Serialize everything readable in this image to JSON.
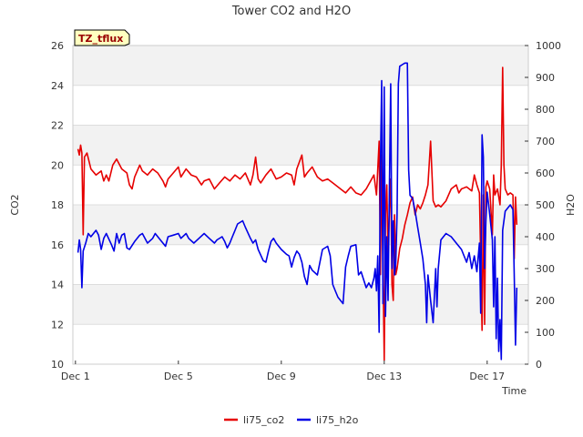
{
  "chart_data": {
    "type": "line",
    "title": "Tower CO2 and H2O",
    "xlabel": "Time",
    "ylabel_left": "CO2",
    "ylabel_right": "H2O",
    "badge": "TZ_tflux",
    "x_ticks": [
      {
        "day": 1,
        "label": "Dec 1"
      },
      {
        "day": 5,
        "label": "Dec 5"
      },
      {
        "day": 9,
        "label": "Dec 9"
      },
      {
        "day": 13,
        "label": "Dec 13"
      },
      {
        "day": 17,
        "label": "Dec 17"
      }
    ],
    "xlim": [
      0.9,
      18.6
    ],
    "ylim_left": [
      10,
      26
    ],
    "ylim_right": [
      0,
      1000
    ],
    "left_ticks": [
      10,
      12,
      14,
      16,
      18,
      20,
      22,
      24,
      26
    ],
    "right_ticks": [
      0,
      100,
      200,
      300,
      400,
      500,
      600,
      700,
      800,
      900,
      1000
    ],
    "bands": [
      [
        12,
        14
      ],
      [
        16,
        18
      ],
      [
        20,
        22
      ],
      [
        24,
        26
      ]
    ],
    "series": [
      {
        "name": "li75_co2",
        "color": "#e60000",
        "axis": "left",
        "points": [
          [
            1.1,
            20.8
          ],
          [
            1.15,
            20.5
          ],
          [
            1.2,
            21.0
          ],
          [
            1.25,
            20.6
          ],
          [
            1.3,
            16.5
          ],
          [
            1.35,
            20.4
          ],
          [
            1.45,
            20.6
          ],
          [
            1.6,
            19.8
          ],
          [
            1.8,
            19.5
          ],
          [
            2.0,
            19.7
          ],
          [
            2.1,
            19.2
          ],
          [
            2.2,
            19.5
          ],
          [
            2.3,
            19.2
          ],
          [
            2.45,
            20.0
          ],
          [
            2.6,
            20.3
          ],
          [
            2.8,
            19.8
          ],
          [
            3.0,
            19.6
          ],
          [
            3.1,
            19.0
          ],
          [
            3.2,
            18.8
          ],
          [
            3.3,
            19.4
          ],
          [
            3.5,
            20.0
          ],
          [
            3.6,
            19.7
          ],
          [
            3.8,
            19.5
          ],
          [
            4.0,
            19.8
          ],
          [
            4.2,
            19.6
          ],
          [
            4.4,
            19.2
          ],
          [
            4.5,
            18.9
          ],
          [
            4.6,
            19.3
          ],
          [
            4.8,
            19.6
          ],
          [
            5.0,
            19.9
          ],
          [
            5.1,
            19.4
          ],
          [
            5.3,
            19.8
          ],
          [
            5.5,
            19.5
          ],
          [
            5.7,
            19.4
          ],
          [
            5.9,
            19.0
          ],
          [
            6.0,
            19.2
          ],
          [
            6.2,
            19.3
          ],
          [
            6.4,
            18.8
          ],
          [
            6.6,
            19.1
          ],
          [
            6.8,
            19.4
          ],
          [
            7.0,
            19.2
          ],
          [
            7.2,
            19.5
          ],
          [
            7.4,
            19.3
          ],
          [
            7.6,
            19.6
          ],
          [
            7.8,
            19.0
          ],
          [
            7.9,
            19.5
          ],
          [
            8.0,
            20.4
          ],
          [
            8.1,
            19.3
          ],
          [
            8.2,
            19.1
          ],
          [
            8.4,
            19.5
          ],
          [
            8.6,
            19.8
          ],
          [
            8.8,
            19.3
          ],
          [
            9.0,
            19.4
          ],
          [
            9.2,
            19.6
          ],
          [
            9.4,
            19.5
          ],
          [
            9.5,
            19.0
          ],
          [
            9.6,
            19.8
          ],
          [
            9.8,
            20.5
          ],
          [
            9.9,
            19.4
          ],
          [
            10.0,
            19.6
          ],
          [
            10.2,
            19.9
          ],
          [
            10.4,
            19.4
          ],
          [
            10.6,
            19.2
          ],
          [
            10.8,
            19.3
          ],
          [
            11.0,
            19.1
          ],
          [
            11.3,
            18.8
          ],
          [
            11.5,
            18.6
          ],
          [
            11.7,
            18.9
          ],
          [
            11.9,
            18.6
          ],
          [
            12.1,
            18.5
          ],
          [
            12.3,
            18.8
          ],
          [
            12.6,
            19.5
          ],
          [
            12.7,
            18.5
          ],
          [
            12.8,
            21.2
          ],
          [
            12.85,
            14.5
          ],
          [
            12.9,
            20.5
          ],
          [
            12.95,
            15.0
          ],
          [
            13.0,
            10.2
          ],
          [
            13.05,
            17.5
          ],
          [
            13.1,
            19.0
          ],
          [
            13.15,
            15.5
          ],
          [
            13.2,
            17.8
          ],
          [
            13.25,
            19.3
          ],
          [
            13.3,
            14.0
          ],
          [
            13.35,
            13.2
          ],
          [
            13.4,
            17.5
          ],
          [
            13.45,
            14.5
          ],
          [
            13.5,
            14.8
          ],
          [
            13.6,
            15.8
          ],
          [
            13.7,
            16.3
          ],
          [
            13.8,
            17.0
          ],
          [
            13.9,
            17.5
          ],
          [
            14.0,
            18.1
          ],
          [
            14.1,
            18.4
          ],
          [
            14.2,
            17.5
          ],
          [
            14.3,
            18.0
          ],
          [
            14.4,
            17.8
          ],
          [
            14.5,
            18.1
          ],
          [
            14.6,
            18.5
          ],
          [
            14.7,
            19.0
          ],
          [
            14.8,
            21.2
          ],
          [
            14.9,
            18.2
          ],
          [
            15.0,
            17.9
          ],
          [
            15.1,
            18.0
          ],
          [
            15.2,
            17.9
          ],
          [
            15.4,
            18.2
          ],
          [
            15.6,
            18.8
          ],
          [
            15.8,
            19.0
          ],
          [
            15.9,
            18.6
          ],
          [
            16.0,
            18.8
          ],
          [
            16.2,
            18.9
          ],
          [
            16.4,
            18.7
          ],
          [
            16.5,
            19.5
          ],
          [
            16.6,
            19.0
          ],
          [
            16.7,
            18.6
          ],
          [
            16.8,
            11.7
          ],
          [
            16.85,
            18.5
          ],
          [
            16.9,
            12.0
          ],
          [
            16.95,
            18.9
          ],
          [
            17.0,
            19.2
          ],
          [
            17.1,
            18.8
          ],
          [
            17.2,
            16.5
          ],
          [
            17.25,
            19.5
          ],
          [
            17.3,
            18.5
          ],
          [
            17.4,
            18.8
          ],
          [
            17.5,
            18.0
          ],
          [
            17.55,
            20.0
          ],
          [
            17.6,
            24.9
          ],
          [
            17.65,
            20.0
          ],
          [
            17.7,
            18.8
          ],
          [
            17.8,
            18.5
          ],
          [
            17.9,
            18.6
          ],
          [
            18.0,
            18.5
          ],
          [
            18.05,
            15.3
          ],
          [
            18.1,
            18.4
          ],
          [
            18.15,
            17.0
          ]
        ]
      },
      {
        "name": "li75_h2o",
        "color": "#0000e6",
        "axis": "right",
        "points": [
          [
            1.1,
            350
          ],
          [
            1.15,
            390
          ],
          [
            1.2,
            360
          ],
          [
            1.25,
            240
          ],
          [
            1.3,
            355
          ],
          [
            1.4,
            380
          ],
          [
            1.5,
            410
          ],
          [
            1.6,
            400
          ],
          [
            1.8,
            420
          ],
          [
            1.9,
            405
          ],
          [
            2.0,
            360
          ],
          [
            2.1,
            395
          ],
          [
            2.2,
            410
          ],
          [
            2.4,
            375
          ],
          [
            2.5,
            355
          ],
          [
            2.6,
            410
          ],
          [
            2.7,
            380
          ],
          [
            2.8,
            405
          ],
          [
            2.9,
            410
          ],
          [
            3.0,
            365
          ],
          [
            3.1,
            360
          ],
          [
            3.3,
            385
          ],
          [
            3.5,
            405
          ],
          [
            3.6,
            410
          ],
          [
            3.8,
            380
          ],
          [
            4.0,
            395
          ],
          [
            4.1,
            410
          ],
          [
            4.3,
            390
          ],
          [
            4.5,
            370
          ],
          [
            4.6,
            400
          ],
          [
            4.8,
            405
          ],
          [
            5.0,
            410
          ],
          [
            5.1,
            395
          ],
          [
            5.3,
            410
          ],
          [
            5.4,
            395
          ],
          [
            5.6,
            380
          ],
          [
            5.8,
            395
          ],
          [
            6.0,
            410
          ],
          [
            6.2,
            395
          ],
          [
            6.4,
            380
          ],
          [
            6.5,
            390
          ],
          [
            6.7,
            400
          ],
          [
            6.8,
            385
          ],
          [
            6.9,
            365
          ],
          [
            7.0,
            380
          ],
          [
            7.1,
            400
          ],
          [
            7.2,
            420
          ],
          [
            7.3,
            440
          ],
          [
            7.5,
            450
          ],
          [
            7.6,
            430
          ],
          [
            7.8,
            395
          ],
          [
            7.9,
            380
          ],
          [
            8.0,
            390
          ],
          [
            8.1,
            360
          ],
          [
            8.3,
            325
          ],
          [
            8.4,
            320
          ],
          [
            8.5,
            355
          ],
          [
            8.6,
            385
          ],
          [
            8.7,
            395
          ],
          [
            8.8,
            380
          ],
          [
            9.0,
            360
          ],
          [
            9.2,
            345
          ],
          [
            9.3,
            340
          ],
          [
            9.4,
            305
          ],
          [
            9.5,
            335
          ],
          [
            9.6,
            355
          ],
          [
            9.7,
            345
          ],
          [
            9.8,
            320
          ],
          [
            9.9,
            275
          ],
          [
            10.0,
            250
          ],
          [
            10.1,
            310
          ],
          [
            10.2,
            295
          ],
          [
            10.4,
            280
          ],
          [
            10.6,
            360
          ],
          [
            10.8,
            370
          ],
          [
            10.9,
            340
          ],
          [
            11.0,
            250
          ],
          [
            11.1,
            230
          ],
          [
            11.2,
            210
          ],
          [
            11.4,
            190
          ],
          [
            11.5,
            305
          ],
          [
            11.6,
            340
          ],
          [
            11.7,
            370
          ],
          [
            11.9,
            375
          ],
          [
            12.0,
            280
          ],
          [
            12.1,
            290
          ],
          [
            12.2,
            265
          ],
          [
            12.3,
            240
          ],
          [
            12.4,
            255
          ],
          [
            12.5,
            240
          ],
          [
            12.6,
            270
          ],
          [
            12.65,
            300
          ],
          [
            12.7,
            230
          ],
          [
            12.75,
            340
          ],
          [
            12.8,
            100
          ],
          [
            12.85,
            620
          ],
          [
            12.9,
            890
          ],
          [
            12.95,
            190
          ],
          [
            13.0,
            870
          ],
          [
            13.05,
            150
          ],
          [
            13.1,
            400
          ],
          [
            13.15,
            200
          ],
          [
            13.2,
            560
          ],
          [
            13.25,
            880
          ],
          [
            13.3,
            300
          ],
          [
            13.35,
            450
          ],
          [
            13.4,
            280
          ],
          [
            13.45,
            320
          ],
          [
            13.5,
            470
          ],
          [
            13.55,
            880
          ],
          [
            13.6,
            935
          ],
          [
            13.7,
            940
          ],
          [
            13.8,
            945
          ],
          [
            13.9,
            945
          ],
          [
            13.95,
            610
          ],
          [
            14.0,
            530
          ],
          [
            14.1,
            520
          ],
          [
            14.2,
            480
          ],
          [
            14.3,
            430
          ],
          [
            14.4,
            380
          ],
          [
            14.5,
            330
          ],
          [
            14.6,
            250
          ],
          [
            14.65,
            130
          ],
          [
            14.7,
            280
          ],
          [
            14.8,
            200
          ],
          [
            14.9,
            130
          ],
          [
            15.0,
            300
          ],
          [
            15.05,
            180
          ],
          [
            15.1,
            300
          ],
          [
            15.2,
            390
          ],
          [
            15.4,
            410
          ],
          [
            15.6,
            400
          ],
          [
            15.8,
            380
          ],
          [
            16.0,
            360
          ],
          [
            16.2,
            320
          ],
          [
            16.3,
            350
          ],
          [
            16.4,
            300
          ],
          [
            16.5,
            340
          ],
          [
            16.6,
            290
          ],
          [
            16.7,
            380
          ],
          [
            16.75,
            160
          ],
          [
            16.8,
            720
          ],
          [
            16.85,
            650
          ],
          [
            16.9,
            300
          ],
          [
            16.95,
            450
          ],
          [
            17.0,
            540
          ],
          [
            17.1,
            470
          ],
          [
            17.2,
            390
          ],
          [
            17.25,
            180
          ],
          [
            17.3,
            400
          ],
          [
            17.35,
            80
          ],
          [
            17.4,
            270
          ],
          [
            17.45,
            40
          ],
          [
            17.5,
            140
          ],
          [
            17.55,
            15
          ],
          [
            17.6,
            420
          ],
          [
            17.7,
            480
          ],
          [
            17.8,
            490
          ],
          [
            17.9,
            500
          ],
          [
            18.0,
            485
          ],
          [
            18.05,
            280
          ],
          [
            18.1,
            60
          ],
          [
            18.15,
            240
          ]
        ]
      }
    ],
    "legend": [
      {
        "label": "li75_co2",
        "color": "#e60000"
      },
      {
        "label": "li75_h2o",
        "color": "#0000e6"
      }
    ]
  }
}
